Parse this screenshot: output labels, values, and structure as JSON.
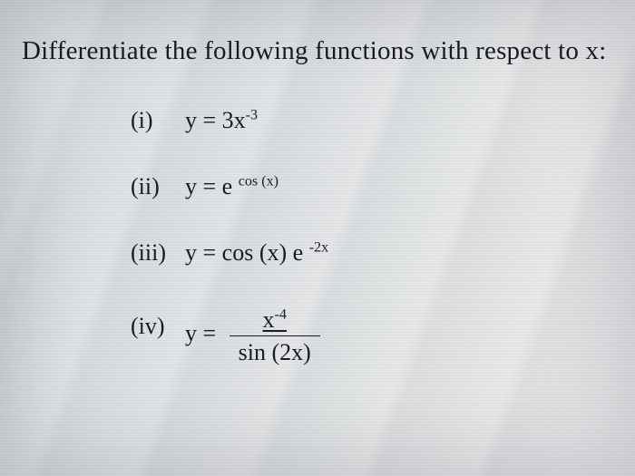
{
  "text_color": "#1a1c24",
  "background_base": "#e0e3e6",
  "heading_fontsize": 29,
  "item_fontsize": 26,
  "font_family": "Times New Roman",
  "heading": "Differentiate the following functions with respect to x:",
  "items": [
    {
      "label": "(i)"
    },
    {
      "label": "(ii)"
    },
    {
      "label": "(iii)"
    },
    {
      "label": "(iv)"
    }
  ],
  "eq1": {
    "lhs": "y = 3x",
    "exp": "-3"
  },
  "eq2": {
    "lhs": "y = e ",
    "exp": "cos (x)"
  },
  "eq3": {
    "part1": "y = cos (x) e ",
    "exp": "-2x"
  },
  "eq4": {
    "lhs": "y = ",
    "num_a": "x",
    "num_exp": "-4",
    "den": "sin (2x)"
  }
}
